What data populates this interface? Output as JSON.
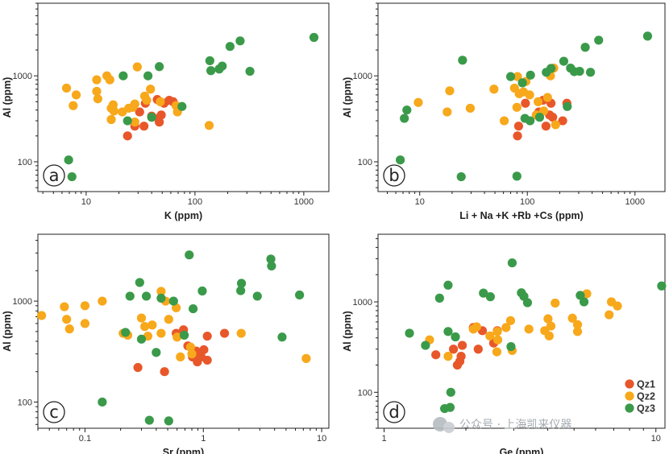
{
  "colors": {
    "Qz1": "#e8572a",
    "Qz2": "#f7a81b",
    "Qz3": "#3a9a4a"
  },
  "legend": [
    {
      "key": "Qz1",
      "label": "Qz1"
    },
    {
      "key": "Qz2",
      "label": "Qz2"
    },
    {
      "key": "Qz3",
      "label": "Qz3"
    }
  ],
  "watermark": "公众号 · 上海凯来仪器",
  "chart_data": [
    {
      "type": "scatter",
      "panel": "a",
      "xscale": "log",
      "yscale": "log",
      "xlim": [
        3.6,
        1700
      ],
      "ylim": [
        45,
        7000
      ],
      "xticks": [
        10,
        100,
        1000
      ],
      "xtick_labels": [
        "10",
        "100",
        "1000"
      ],
      "yticks": [
        100,
        1000
      ],
      "ytick_labels": [
        "100",
        "1000"
      ],
      "xlabel": "K (ppm)",
      "ylabel": "Al (ppm)",
      "series": [
        {
          "name": "Qz1",
          "points": [
            [
              24,
              200
            ],
            [
              28,
              260
            ],
            [
              31,
              380
            ],
            [
              34,
              260
            ],
            [
              35,
              480
            ],
            [
              40,
              340
            ],
            [
              46,
              320
            ],
            [
              45,
              530
            ],
            [
              47,
              290
            ],
            [
              49,
              350
            ],
            [
              52,
              480
            ],
            [
              58,
              520
            ],
            [
              63,
              500
            ]
          ]
        },
        {
          "name": "Qz2",
          "points": [
            [
              6.6,
              720
            ],
            [
              7.6,
              450
            ],
            [
              8.1,
              600
            ],
            [
              12.5,
              900
            ],
            [
              12.5,
              660
            ],
            [
              12.8,
              540
            ],
            [
              15.5,
              1000
            ],
            [
              16.5,
              900
            ],
            [
              17,
              420
            ],
            [
              17.7,
              460
            ],
            [
              18,
              390
            ],
            [
              17,
              310
            ],
            [
              21.5,
              380
            ],
            [
              24.6,
              420
            ],
            [
              26.8,
              430
            ],
            [
              28,
              470
            ],
            [
              28,
              290
            ],
            [
              29.5,
              1270
            ],
            [
              34.5,
              580
            ],
            [
              36,
              520
            ],
            [
              39,
              700
            ],
            [
              48,
              500
            ],
            [
              67,
              450
            ],
            [
              69,
              380
            ],
            [
              135,
              265
            ]
          ]
        },
        {
          "name": "Qz3",
          "points": [
            [
              6.9,
              105
            ],
            [
              7.4,
              67
            ],
            [
              21.9,
              1000
            ],
            [
              24,
              300
            ],
            [
              37,
              1000
            ],
            [
              40,
              330
            ],
            [
              47,
              1280
            ],
            [
              76,
              440
            ],
            [
              137,
              1500
            ],
            [
              140,
              1150
            ],
            [
              167,
              1200
            ],
            [
              178,
              1300
            ],
            [
              210,
              2200
            ],
            [
              260,
              2550
            ],
            [
              320,
              1130
            ],
            [
              1240,
              2800
            ]
          ]
        }
      ]
    },
    {
      "type": "scatter",
      "panel": "b",
      "xscale": "log",
      "yscale": "log",
      "xlim": [
        4.1,
        1900
      ],
      "ylim": [
        45,
        7000
      ],
      "xticks": [
        10,
        100,
        1000
      ],
      "xtick_labels": [
        "10",
        "100",
        "1000"
      ],
      "yticks": [
        100,
        1000
      ],
      "ytick_labels": [
        "100",
        "1000"
      ],
      "xlabel": "Li + Na +K +Rb +Cs (ppm)",
      "ylabel": "Al (ppm)",
      "series": [
        {
          "name": "Qz1",
          "points": [
            [
              81,
              200
            ],
            [
              83,
              260
            ],
            [
              96,
              480
            ],
            [
              128,
              380
            ],
            [
              140,
              520
            ],
            [
              149,
              260
            ],
            [
              161,
              350
            ],
            [
              166,
              480
            ],
            [
              172,
              330
            ],
            [
              213,
              300
            ],
            [
              233,
              480
            ]
          ]
        },
        {
          "name": "Qz2",
          "points": [
            [
              9.7,
              490
            ],
            [
              18,
              380
            ],
            [
              19,
              670
            ],
            [
              29.5,
              420
            ],
            [
              49,
              700
            ],
            [
              61,
              300
            ],
            [
              76,
              720
            ],
            [
              80,
              430
            ],
            [
              84,
              620
            ],
            [
              81,
              980
            ],
            [
              92,
              650
            ],
            [
              97,
              860
            ],
            [
              105,
              600
            ],
            [
              121,
              350
            ],
            [
              126,
              500
            ],
            [
              142,
              390
            ],
            [
              154,
              560
            ],
            [
              164,
              1000
            ],
            [
              183,
              270
            ],
            [
              176,
              1230
            ]
          ]
        },
        {
          "name": "Qz3",
          "points": [
            [
              6.6,
              105
            ],
            [
              7.2,
              320
            ],
            [
              7.6,
              400
            ],
            [
              24.3,
              67
            ],
            [
              25,
              1520
            ],
            [
              70,
              980
            ],
            [
              80,
              68
            ],
            [
              90,
              830
            ],
            [
              95,
              320
            ],
            [
              106,
              300
            ],
            [
              107,
              1020
            ],
            [
              130,
              330
            ],
            [
              150,
              1100
            ],
            [
              166,
              1220
            ],
            [
              218,
              1480
            ],
            [
              235,
              440
            ],
            [
              252,
              1230
            ],
            [
              273,
              1120
            ],
            [
              306,
              1130
            ],
            [
              345,
              2150
            ],
            [
              386,
              1100
            ],
            [
              460,
              2600
            ],
            [
              1310,
              2900
            ]
          ]
        }
      ]
    },
    {
      "type": "scatter",
      "panel": "c",
      "xscale": "log",
      "yscale": "log",
      "xlim": [
        0.04,
        11.5
      ],
      "ylim": [
        55,
        4600
      ],
      "xticks": [
        0.1,
        1,
        10
      ],
      "xtick_labels": [
        "0.1",
        "1",
        "10"
      ],
      "yticks": [
        100,
        1000
      ],
      "ytick_labels": [
        "100",
        "1000"
      ],
      "xlabel": "Sr (ppm)",
      "ylabel": "Al (ppm)",
      "series": [
        {
          "name": "Qz1",
          "points": [
            [
              0.28,
              220
            ],
            [
              0.47,
              200
            ],
            [
              0.59,
              480
            ],
            [
              0.68,
              520
            ],
            [
              0.74,
              360
            ],
            [
              0.81,
              280
            ],
            [
              0.87,
              320
            ],
            [
              0.89,
              250
            ],
            [
              0.9,
              300
            ],
            [
              0.96,
              280
            ],
            [
              1.01,
              330
            ],
            [
              1.08,
              260
            ],
            [
              1.08,
              450
            ],
            [
              1.51,
              480
            ]
          ]
        },
        {
          "name": "Qz2",
          "points": [
            [
              0.043,
              720
            ],
            [
              0.067,
              880
            ],
            [
              0.07,
              660
            ],
            [
              0.074,
              530
            ],
            [
              0.1,
              900
            ],
            [
              0.1,
              600
            ],
            [
              0.14,
              1000
            ],
            [
              0.21,
              480
            ],
            [
              0.23,
              460
            ],
            [
              0.3,
              680
            ],
            [
              0.32,
              560
            ],
            [
              0.34,
              450
            ],
            [
              0.37,
              580
            ],
            [
              0.44,
              480
            ],
            [
              0.44,
              1250
            ],
            [
              0.48,
              1000
            ],
            [
              0.51,
              660
            ],
            [
              0.59,
              860
            ],
            [
              0.6,
              440
            ],
            [
              0.64,
              280
            ],
            [
              0.78,
              350
            ],
            [
              0.8,
              300
            ],
            [
              2.09,
              480
            ],
            [
              7.4,
              270
            ]
          ]
        },
        {
          "name": "Qz3",
          "points": [
            [
              0.14,
              100
            ],
            [
              0.22,
              490
            ],
            [
              0.24,
              1120
            ],
            [
              0.29,
              1530
            ],
            [
              0.3,
              420
            ],
            [
              0.33,
              1120
            ],
            [
              0.35,
              66
            ],
            [
              0.4,
              310
            ],
            [
              0.44,
              1070
            ],
            [
              0.51,
              65
            ],
            [
              0.56,
              1000
            ],
            [
              0.69,
              460
            ],
            [
              0.76,
              2870
            ],
            [
              0.82,
              840
            ],
            [
              0.98,
              1260
            ],
            [
              2.07,
              1270
            ],
            [
              2.1,
              1500
            ],
            [
              2.86,
              1120
            ],
            [
              3.72,
              2610
            ],
            [
              3.77,
              2230
            ],
            [
              4.63,
              440
            ],
            [
              6.5,
              1150
            ]
          ]
        }
      ]
    },
    {
      "type": "scatter",
      "panel": "d",
      "xscale": "log",
      "yscale": "log",
      "xlim": [
        0.95,
        10.8
      ],
      "ylim": [
        40,
        5600
      ],
      "xticks": [
        1,
        10
      ],
      "xtick_labels": [
        "1",
        "10"
      ],
      "yticks": [
        100,
        1000
      ],
      "ytick_labels": [
        "100",
        "1000"
      ],
      "xlabel": "Ge (ppm)",
      "ylabel": "Al (ppm)",
      "series": [
        {
          "name": "Qz1",
          "points": [
            [
              1.55,
              260
            ],
            [
              1.8,
              300
            ],
            [
              1.86,
              200
            ],
            [
              1.9,
              220
            ],
            [
              1.92,
              250
            ],
            [
              1.94,
              330
            ],
            [
              2.13,
              520
            ],
            [
              2.22,
              300
            ],
            [
              2.3,
              480
            ],
            [
              2.53,
              350
            ],
            [
              2.61,
              480
            ]
          ]
        },
        {
          "name": "Qz2",
          "points": [
            [
              1.47,
              380
            ],
            [
              1.72,
              250
            ],
            [
              2.13,
              500
            ],
            [
              2.19,
              530
            ],
            [
              2.45,
              420
            ],
            [
              2.6,
              280
            ],
            [
              2.61,
              470
            ],
            [
              2.62,
              380
            ],
            [
              2.81,
              520
            ],
            [
              2.92,
              620
            ],
            [
              2.96,
              290
            ],
            [
              3.41,
              500
            ],
            [
              3.9,
              480
            ],
            [
              4.01,
              650
            ],
            [
              4.05,
              420
            ],
            [
              4.11,
              540
            ],
            [
              4.26,
              970
            ],
            [
              4.93,
              660
            ],
            [
              5.15,
              470
            ],
            [
              5.15,
              560
            ],
            [
              5.57,
              1230
            ],
            [
              6.73,
              720
            ],
            [
              6.86,
              1000
            ],
            [
              7.22,
              900
            ]
          ]
        },
        {
          "name": "Qz3",
          "points": [
            [
              1.24,
              450
            ],
            [
              1.42,
              330
            ],
            [
              1.6,
              1100
            ],
            [
              1.67,
              66
            ],
            [
              1.72,
              1530
            ],
            [
              1.72,
              470
            ],
            [
              1.75,
              68
            ],
            [
              1.76,
              100
            ],
            [
              1.83,
              410
            ],
            [
              2.32,
              1250
            ],
            [
              2.46,
              1140
            ],
            [
              2.93,
              320
            ],
            [
              2.96,
              2700
            ],
            [
              3.2,
              1260
            ],
            [
              3.27,
              1150
            ],
            [
              3.37,
              980
            ],
            [
              5.27,
              1180
            ],
            [
              5.44,
              1000
            ],
            [
              10.5,
              1500
            ]
          ]
        }
      ]
    }
  ]
}
